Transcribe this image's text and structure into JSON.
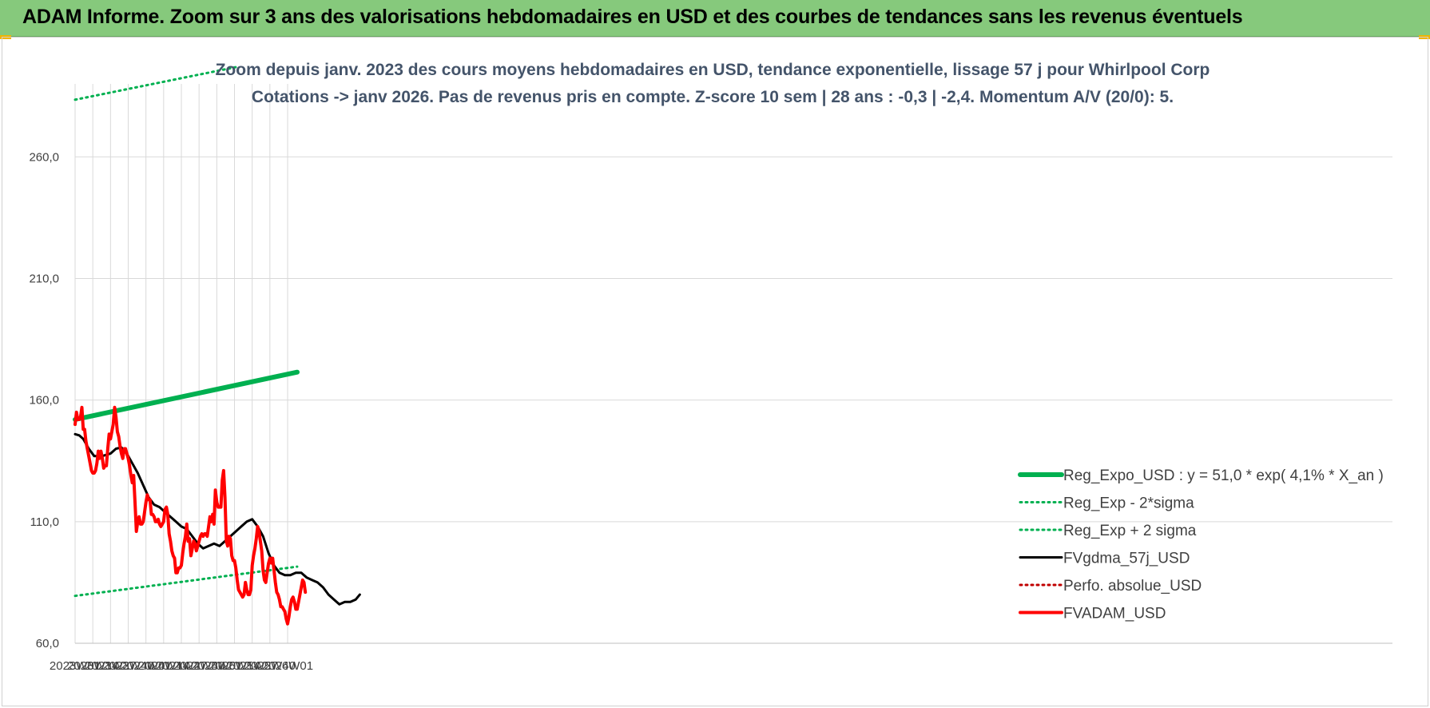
{
  "header": {
    "banner_title": "ADAM Informe. Zoom sur 3 ans des valorisations hebdomadaires en USD et des courbes de tendances sans les revenus éventuels"
  },
  "colors": {
    "banner_bg": "#86c97c",
    "trend": "#00b050",
    "price": "#ff0000",
    "moving_average": "#000000",
    "absolute_perf": "#c00000",
    "grid": "#d9d9d9"
  },
  "chart_data": {
    "type": "line",
    "title_lines": [
      "Zoom depuis janv. 2023 des cours moyens hebdomadaires en USD, tendance exponentielle, lissage 57 j pour Whirlpool Corp",
      "Cotations -> janv 2026. Pas de revenus pris en compte. Z-score 10 sem | 28 ans : -0,3 | -2,4. Momentum A/V (20/0): 5."
    ],
    "x_tick_labels": [
      "2023W01",
      "2023W14",
      "2023W27",
      "2023W40",
      "2024W01",
      "2024W14",
      "2024W27",
      "2024W40",
      "2025W01",
      "2025W14",
      "2025W27",
      "2025W40",
      "2026W01"
    ],
    "y_tick_labels": [
      "60,0",
      "110,0",
      "160,0",
      "210,0",
      "260,0"
    ],
    "y_ticks": [
      60,
      110,
      160,
      210,
      260
    ],
    "ylim": [
      60,
      290
    ],
    "x_range_weeks": [
      0,
      163
    ],
    "grid": true,
    "legend_position": "right",
    "series": [
      {
        "name": "Reg_Expo_USD : y = 51,0 * exp( 4,1% *  X_an )",
        "style": "solid-thick",
        "color": "#00b050",
        "points": [
          [
            0,
            152.0
          ],
          [
            163,
            171.5
          ]
        ]
      },
      {
        "name": "Reg_Exp - 2*sigma",
        "style": "dotted",
        "color": "#00b050",
        "points": [
          [
            0,
            79.5
          ],
          [
            163,
            91.5
          ]
        ]
      },
      {
        "name": "Reg_Exp + 2 sigma",
        "style": "dotted",
        "color": "#00b050",
        "points": [
          [
            0,
            283.5
          ],
          [
            163,
            302
          ]
        ]
      },
      {
        "name": "FVgdma_57j_USD",
        "style": "solid",
        "color": "#000000",
        "points": [
          [
            0,
            146
          ],
          [
            3,
            145.5
          ],
          [
            6,
            144
          ],
          [
            10,
            140
          ],
          [
            14,
            137
          ],
          [
            20,
            137
          ],
          [
            26,
            138
          ],
          [
            30,
            140
          ],
          [
            34,
            140.5
          ],
          [
            38,
            138
          ],
          [
            42,
            134
          ],
          [
            46,
            130
          ],
          [
            50,
            125
          ],
          [
            54,
            120
          ],
          [
            58,
            117
          ],
          [
            62,
            116
          ],
          [
            66,
            114
          ],
          [
            70,
            112
          ],
          [
            74,
            110
          ],
          [
            78,
            108
          ],
          [
            82,
            107
          ],
          [
            86,
            104
          ],
          [
            90,
            101
          ],
          [
            94,
            99
          ],
          [
            98,
            100
          ],
          [
            102,
            101
          ],
          [
            106,
            100
          ],
          [
            110,
            102
          ],
          [
            114,
            104
          ],
          [
            118,
            106
          ],
          [
            122,
            108
          ],
          [
            126,
            110
          ],
          [
            130,
            111
          ],
          [
            134,
            108
          ],
          [
            138,
            104
          ],
          [
            142,
            97
          ],
          [
            146,
            92
          ],
          [
            150,
            89
          ],
          [
            154,
            88
          ],
          [
            158,
            88
          ],
          [
            162,
            89
          ],
          [
            166,
            89
          ],
          [
            170,
            87
          ],
          [
            174,
            86
          ],
          [
            178,
            85
          ],
          [
            182,
            83
          ],
          [
            186,
            80
          ],
          [
            190,
            78
          ],
          [
            194,
            76
          ],
          [
            198,
            77
          ],
          [
            202,
            77
          ],
          [
            206,
            78
          ],
          [
            209,
            80
          ]
        ]
      },
      {
        "name": "Perfo. absolue_USD",
        "style": "dotted",
        "color": "#c00000",
        "points": []
      },
      {
        "name": "FVADAM_USD",
        "style": "solid-thick",
        "color": "#ff0000",
        "points": [
          [
            0,
            150
          ],
          [
            1,
            155
          ],
          [
            2,
            152
          ],
          [
            3,
            152
          ],
          [
            4,
            153
          ],
          [
            5,
            157
          ],
          [
            6,
            148
          ],
          [
            7,
            148
          ],
          [
            8,
            143
          ],
          [
            9,
            140
          ],
          [
            10,
            137
          ],
          [
            11,
            134
          ],
          [
            12,
            131
          ],
          [
            13,
            130
          ],
          [
            14,
            130
          ],
          [
            15,
            131
          ],
          [
            16,
            134
          ],
          [
            17,
            139
          ],
          [
            18,
            136
          ],
          [
            19,
            139
          ],
          [
            20,
            136
          ],
          [
            21,
            132
          ],
          [
            22,
            133
          ],
          [
            23,
            133
          ],
          [
            24,
            140
          ],
          [
            25,
            146
          ],
          [
            26,
            144
          ],
          [
            27,
            147
          ],
          [
            28,
            150
          ],
          [
            29,
            157
          ],
          [
            30,
            153
          ],
          [
            31,
            147
          ],
          [
            32,
            145
          ],
          [
            33,
            141
          ],
          [
            34,
            138
          ],
          [
            35,
            136
          ],
          [
            36,
            140
          ],
          [
            37,
            140
          ],
          [
            38,
            138
          ],
          [
            39,
            136
          ],
          [
            40,
            133
          ],
          [
            41,
            129
          ],
          [
            42,
            126
          ],
          [
            43,
            129
          ],
          [
            44,
            118
          ],
          [
            45,
            106
          ],
          [
            46,
            110
          ],
          [
            47,
            112
          ],
          [
            48,
            109
          ],
          [
            49,
            109
          ],
          [
            50,
            110
          ],
          [
            51,
            114
          ],
          [
            52,
            118
          ],
          [
            53,
            121
          ],
          [
            54,
            119
          ],
          [
            55,
            119
          ],
          [
            56,
            113
          ],
          [
            57,
            113
          ],
          [
            58,
            112
          ],
          [
            59,
            110
          ],
          [
            60,
            110
          ],
          [
            61,
            111
          ],
          [
            62,
            109
          ],
          [
            63,
            108
          ],
          [
            64,
            109
          ],
          [
            65,
            110
          ],
          [
            66,
            115
          ],
          [
            67,
            116
          ],
          [
            68,
            113
          ],
          [
            69,
            105
          ],
          [
            70,
            102
          ],
          [
            71,
            98
          ],
          [
            72,
            96
          ],
          [
            73,
            95
          ],
          [
            74,
            89
          ],
          [
            75,
            89
          ],
          [
            76,
            91
          ],
          [
            77,
            91
          ],
          [
            78,
            92
          ],
          [
            79,
            97
          ],
          [
            80,
            101
          ],
          [
            81,
            104
          ],
          [
            82,
            109
          ],
          [
            83,
            102
          ],
          [
            84,
            103
          ],
          [
            85,
            96
          ],
          [
            86,
            99
          ],
          [
            87,
            102
          ],
          [
            88,
            101
          ],
          [
            89,
            98
          ],
          [
            90,
            100
          ],
          [
            91,
            102
          ],
          [
            92,
            104
          ],
          [
            93,
            105
          ],
          [
            94,
            104
          ],
          [
            95,
            105
          ],
          [
            96,
            105
          ],
          [
            97,
            104
          ],
          [
            98,
            108
          ],
          [
            99,
            112
          ],
          [
            100,
            110
          ],
          [
            101,
            113
          ],
          [
            102,
            109
          ],
          [
            103,
            123
          ],
          [
            104,
            118
          ],
          [
            105,
            116
          ],
          [
            106,
            116
          ],
          [
            107,
            116
          ],
          [
            108,
            127
          ],
          [
            109,
            131
          ],
          [
            110,
            120
          ],
          [
            111,
            102
          ],
          [
            112,
            100
          ],
          [
            113,
            104
          ],
          [
            114,
            103
          ],
          [
            115,
            96
          ],
          [
            116,
            94
          ],
          [
            117,
            94
          ],
          [
            118,
            91
          ],
          [
            119,
            86
          ],
          [
            120,
            82
          ],
          [
            121,
            81
          ],
          [
            122,
            80
          ],
          [
            123,
            79
          ],
          [
            124,
            80
          ],
          [
            125,
            85
          ],
          [
            126,
            82
          ],
          [
            127,
            80
          ],
          [
            128,
            80
          ],
          [
            129,
            82
          ],
          [
            130,
            92
          ],
          [
            131,
            96
          ],
          [
            132,
            99
          ],
          [
            133,
            103
          ],
          [
            134,
            108
          ],
          [
            135,
            106
          ],
          [
            136,
            102
          ],
          [
            137,
            98
          ],
          [
            138,
            90
          ],
          [
            139,
            86
          ],
          [
            140,
            85
          ],
          [
            141,
            89
          ],
          [
            142,
            93
          ],
          [
            143,
            95
          ],
          [
            144,
            93
          ],
          [
            145,
            95
          ],
          [
            146,
            90
          ],
          [
            147,
            85
          ],
          [
            148,
            81
          ],
          [
            149,
            80
          ],
          [
            150,
            78
          ],
          [
            151,
            75
          ],
          [
            152,
            75
          ],
          [
            153,
            74
          ],
          [
            154,
            73
          ],
          [
            155,
            70
          ],
          [
            156,
            68
          ],
          [
            157,
            71
          ],
          [
            158,
            75
          ],
          [
            159,
            78
          ],
          [
            160,
            79
          ],
          [
            161,
            77
          ],
          [
            162,
            74
          ],
          [
            163,
            74
          ],
          [
            164,
            77
          ],
          [
            165,
            80
          ],
          [
            166,
            83
          ],
          [
            167,
            86
          ],
          [
            168,
            85
          ],
          [
            169,
            81
          ]
        ]
      }
    ]
  }
}
